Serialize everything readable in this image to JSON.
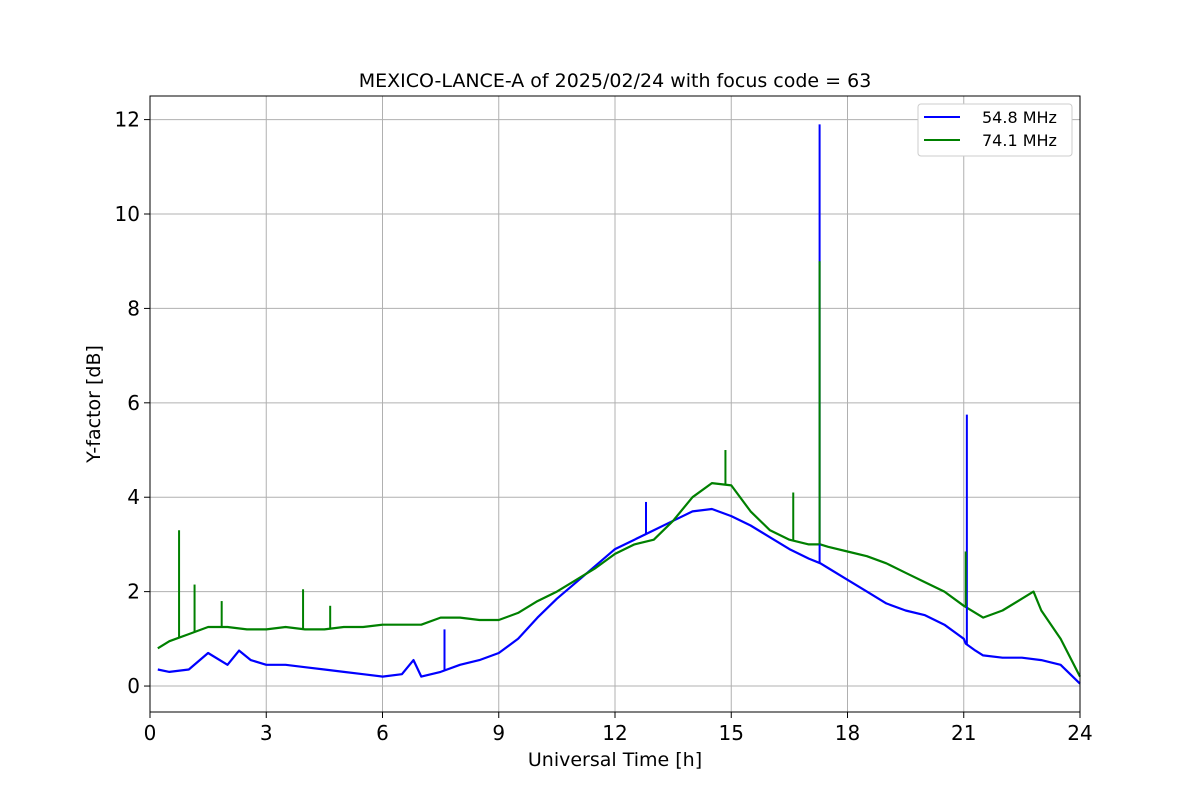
{
  "chart_data": {
    "type": "line",
    "title": "MEXICO-LANCE-A of 2025/02/24 with focus code = 63",
    "xlabel": "Universal Time [h]",
    "ylabel": "Y-factor [dB]",
    "xlim": [
      0,
      24
    ],
    "ylim": [
      -0.55,
      12.5
    ],
    "xticks": [
      0,
      3,
      6,
      9,
      12,
      15,
      18,
      21,
      24
    ],
    "yticks": [
      0,
      2,
      4,
      6,
      8,
      10,
      12
    ],
    "grid": true,
    "legend_position": "top-right",
    "series": [
      {
        "name": "54.8 MHz",
        "color": "#0000ff",
        "x": [
          0.2,
          0.5,
          1.0,
          1.5,
          2.0,
          2.3,
          2.6,
          3.0,
          3.5,
          4.0,
          4.5,
          5.0,
          5.5,
          6.0,
          6.5,
          6.8,
          7.0,
          7.5,
          8.0,
          8.5,
          9.0,
          9.5,
          10.0,
          10.5,
          11.0,
          11.5,
          12.0,
          12.5,
          13.0,
          13.5,
          14.0,
          14.5,
          15.0,
          15.5,
          16.0,
          16.5,
          17.0,
          17.3,
          17.5,
          18.0,
          18.5,
          19.0,
          19.5,
          20.0,
          20.5,
          21.0,
          21.05,
          21.3,
          21.5,
          22.0,
          22.5,
          23.0,
          23.5,
          24.0
        ],
        "y": [
          0.35,
          0.3,
          0.35,
          0.7,
          0.45,
          0.75,
          0.55,
          0.45,
          0.45,
          0.4,
          0.35,
          0.3,
          0.25,
          0.2,
          0.25,
          0.55,
          0.2,
          0.3,
          0.45,
          0.55,
          0.7,
          1.0,
          1.45,
          1.85,
          2.2,
          2.55,
          2.9,
          3.1,
          3.3,
          3.5,
          3.7,
          3.75,
          3.6,
          3.4,
          3.15,
          2.9,
          2.7,
          2.6,
          2.5,
          2.25,
          2.0,
          1.75,
          1.6,
          1.5,
          1.3,
          1.0,
          0.9,
          0.75,
          0.65,
          0.6,
          0.6,
          0.55,
          0.45,
          0.05
        ]
      },
      {
        "name": "74.1 MHz",
        "color": "#008000",
        "x": [
          0.2,
          0.5,
          1.0,
          1.5,
          2.0,
          2.5,
          3.0,
          3.5,
          4.0,
          4.5,
          5.0,
          5.5,
          6.0,
          6.5,
          7.0,
          7.5,
          8.0,
          8.5,
          9.0,
          9.5,
          10.0,
          10.5,
          11.0,
          11.5,
          12.0,
          12.5,
          13.0,
          13.5,
          14.0,
          14.5,
          15.0,
          15.5,
          16.0,
          16.5,
          17.0,
          17.3,
          17.5,
          18.0,
          18.5,
          19.0,
          19.5,
          20.0,
          20.5,
          21.0,
          21.5,
          22.0,
          22.5,
          22.8,
          23.0,
          23.5,
          24.0
        ],
        "y": [
          0.8,
          0.95,
          1.1,
          1.25,
          1.25,
          1.2,
          1.2,
          1.25,
          1.2,
          1.2,
          1.25,
          1.25,
          1.3,
          1.3,
          1.3,
          1.45,
          1.45,
          1.4,
          1.4,
          1.55,
          1.8,
          2.0,
          2.25,
          2.5,
          2.8,
          3.0,
          3.1,
          3.5,
          4.0,
          4.3,
          4.25,
          3.7,
          3.3,
          3.1,
          3.0,
          3.0,
          2.95,
          2.85,
          2.75,
          2.6,
          2.4,
          2.2,
          2.0,
          1.7,
          1.45,
          1.6,
          1.85,
          2.0,
          1.6,
          1.0,
          0.2
        ]
      }
    ],
    "spikes": [
      {
        "series": 0,
        "x": 17.28,
        "y": 11.9
      },
      {
        "series": 0,
        "x": 21.08,
        "y": 5.75
      },
      {
        "series": 0,
        "x": 12.8,
        "y": 3.9
      },
      {
        "series": 0,
        "x": 7.6,
        "y": 1.2
      },
      {
        "series": 1,
        "x": 0.75,
        "y": 3.3
      },
      {
        "series": 1,
        "x": 1.15,
        "y": 2.15
      },
      {
        "series": 1,
        "x": 1.85,
        "y": 1.8
      },
      {
        "series": 1,
        "x": 3.95,
        "y": 2.05
      },
      {
        "series": 1,
        "x": 4.65,
        "y": 1.7
      },
      {
        "series": 1,
        "x": 14.85,
        "y": 5.0
      },
      {
        "series": 1,
        "x": 16.6,
        "y": 4.1
      },
      {
        "series": 1,
        "x": 17.28,
        "y": 9.0
      },
      {
        "series": 1,
        "x": 21.05,
        "y": 2.85
      }
    ]
  }
}
